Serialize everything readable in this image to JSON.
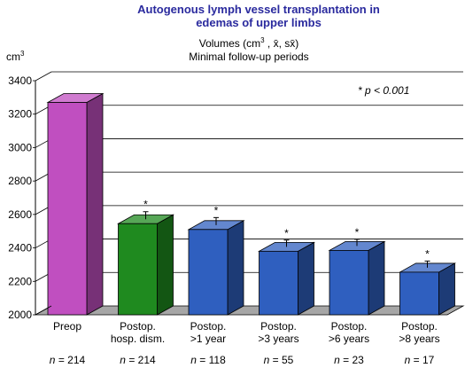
{
  "chart_data": {
    "type": "bar",
    "title_lines": [
      "Autogenous lymph vessel transplantation in",
      "edemas of upper limbs"
    ],
    "subtitle_prefix": "Volumes (cm",
    "subtitle_sup": "3",
    "subtitle_suffix": "  , x̄, sx̄)",
    "subtitle_line2": "Minimal follow-up periods",
    "ylabel": "cm",
    "ylabel_sup": "3",
    "significance_label": "* p < 0.001",
    "ylim": [
      2000,
      3400
    ],
    "yticks": [
      2000,
      2200,
      2400,
      2600,
      2800,
      3000,
      3200,
      3400
    ],
    "grid": true,
    "categories": [
      [
        "Preop"
      ],
      [
        "Postop.",
        "hosp. dism."
      ],
      [
        "Postop.",
        ">1 year"
      ],
      [
        "Postop.",
        ">3 years"
      ],
      [
        "Postop.",
        ">6 years"
      ],
      [
        "Postop.",
        ">8 years"
      ]
    ],
    "values": [
      3270,
      2545,
      2510,
      2380,
      2385,
      2255
    ],
    "error_bars": [
      0,
      45,
      45,
      40,
      40,
      40
    ],
    "significance_markers": [
      "",
      "*",
      "*",
      "*",
      "*",
      "*"
    ],
    "sample_sizes": [
      "n = 214",
      "n = 214",
      "n = 118",
      "n = 55",
      "n = 23",
      "n = 17"
    ],
    "colors": {
      "bars": [
        "#c04fc0",
        "#1f8a1f",
        "#2f5fbf",
        "#2f5fbf",
        "#2f5fbf",
        "#2f5fbf"
      ],
      "title": "#2a2a9e",
      "grid": "#000000",
      "floor": "#a6a6a6"
    }
  }
}
